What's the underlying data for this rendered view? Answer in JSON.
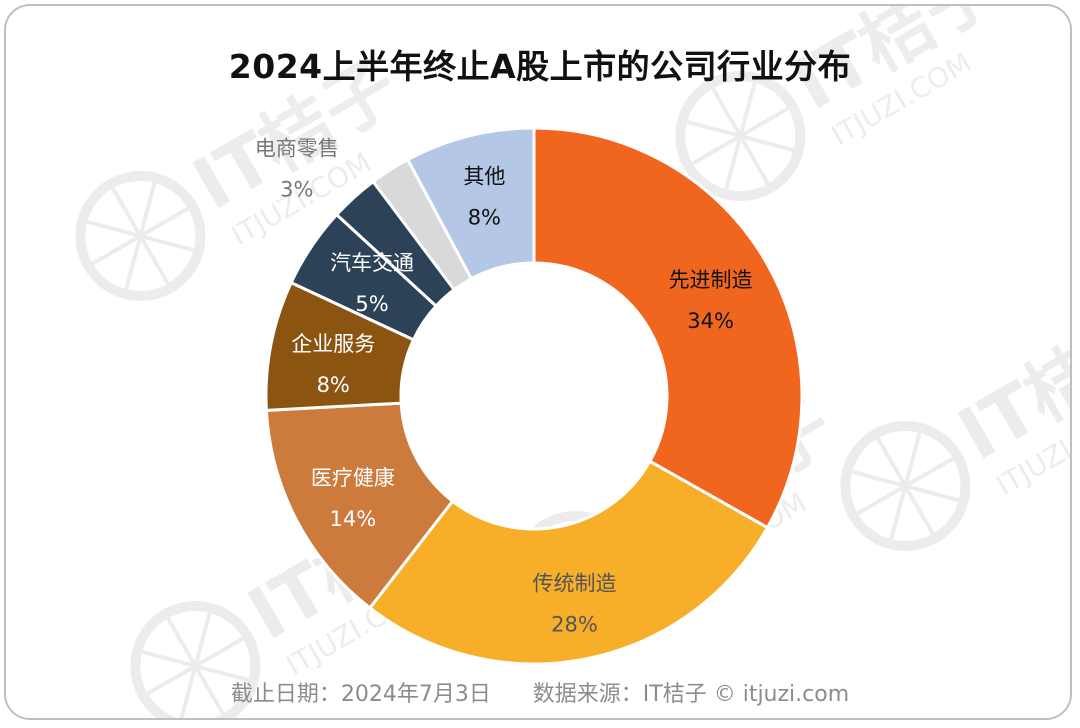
{
  "title": "2024上半年终止A股上市的公司行业分布",
  "footer": {
    "date": "截止日期：2024年7月3日",
    "source": "数据来源：IT桔子 © itjuzi.com"
  },
  "watermark": {
    "brand": "IT桔子",
    "domain": "ITJUZI.COM"
  },
  "chart_data": {
    "type": "pie",
    "donut": true,
    "categories": [
      "先进制造",
      "传统制造",
      "医疗健康",
      "企业服务",
      "汽车交通",
      "电商零售",
      "其他"
    ],
    "values": [
      34,
      28,
      14,
      8,
      5,
      3,
      8
    ],
    "value_labels": [
      "34%",
      "28%",
      "14%",
      "8%",
      "5%",
      "3%",
      "8%"
    ],
    "extra_slice": {
      "color": "#d9d9d9",
      "value": 2.5
    },
    "colors": [
      "#f0661f",
      "#f7af2a",
      "#cd7a3d",
      "#8b5511",
      "#2c4256",
      "#2c4256",
      "#b4c7e7"
    ],
    "label_colors": [
      "#111111",
      "#555555",
      "#ffffff",
      "#ffffff",
      "#ffffff",
      "#777777",
      "#111111"
    ]
  }
}
